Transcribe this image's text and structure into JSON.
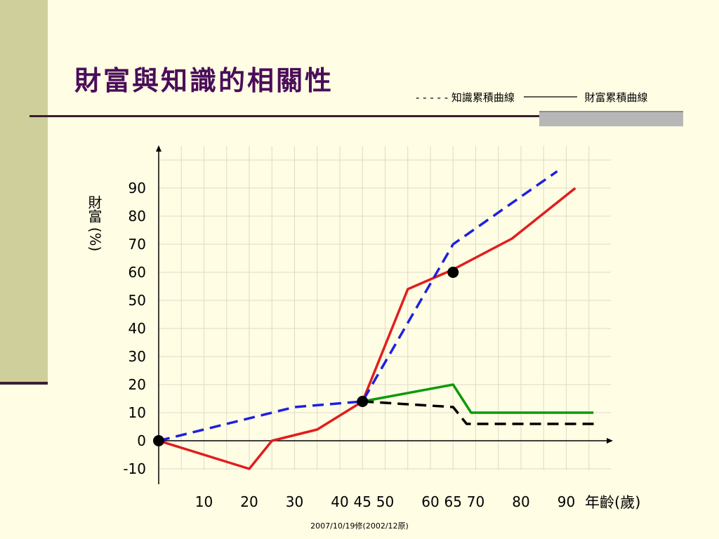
{
  "slide": {
    "title": "財富與知識的相關性",
    "legend_text": "- - - - - 知識累積曲線 ———— 財富累積曲線",
    "legend_knowledge": "- - - - - 知識累積曲線",
    "legend_wealth": "財富累積曲線",
    "footer": "2007/10/19修(2002/12原)"
  },
  "chart_data": {
    "type": "line",
    "title": "",
    "ylabel": "財富(%)",
    "ylabel_main": "財富",
    "ylabel_unit": "(%)",
    "xlabel": "年齡(歲)",
    "xlim": [
      0,
      100
    ],
    "ylim": [
      -10,
      100
    ],
    "grid": true,
    "x_ticks": [
      10,
      20,
      30,
      40,
      45,
      50,
      60,
      65,
      70,
      80,
      90
    ],
    "y_ticks": [
      -10,
      0,
      10,
      20,
      30,
      40,
      50,
      60,
      70,
      80,
      90
    ],
    "series": [
      {
        "name": "財富累積曲線",
        "color": "#e01e1e",
        "style": "solid",
        "points": [
          [
            0,
            0
          ],
          [
            20,
            -10
          ],
          [
            25,
            0
          ],
          [
            35,
            4
          ],
          [
            45,
            14
          ],
          [
            55,
            54
          ],
          [
            65,
            61
          ],
          [
            78,
            72
          ],
          [
            92,
            90
          ]
        ]
      },
      {
        "name": "知識累積曲線",
        "color": "#1f1fe0",
        "style": "dashed",
        "points": [
          [
            0,
            0
          ],
          [
            15,
            6
          ],
          [
            30,
            12
          ],
          [
            45,
            14
          ],
          [
            65,
            70
          ],
          [
            88,
            96
          ]
        ]
      },
      {
        "color": "#0d9a0d",
        "style": "solid",
        "points": [
          [
            45,
            14
          ],
          [
            65,
            20
          ],
          [
            69,
            10
          ],
          [
            96,
            10
          ]
        ]
      },
      {
        "color": "#000000",
        "style": "dashed",
        "points": [
          [
            45,
            14
          ],
          [
            65,
            12
          ],
          [
            68,
            6
          ],
          [
            97,
            6
          ]
        ]
      }
    ],
    "markers": [
      [
        0,
        0
      ],
      [
        45,
        14
      ],
      [
        65,
        60
      ]
    ]
  }
}
